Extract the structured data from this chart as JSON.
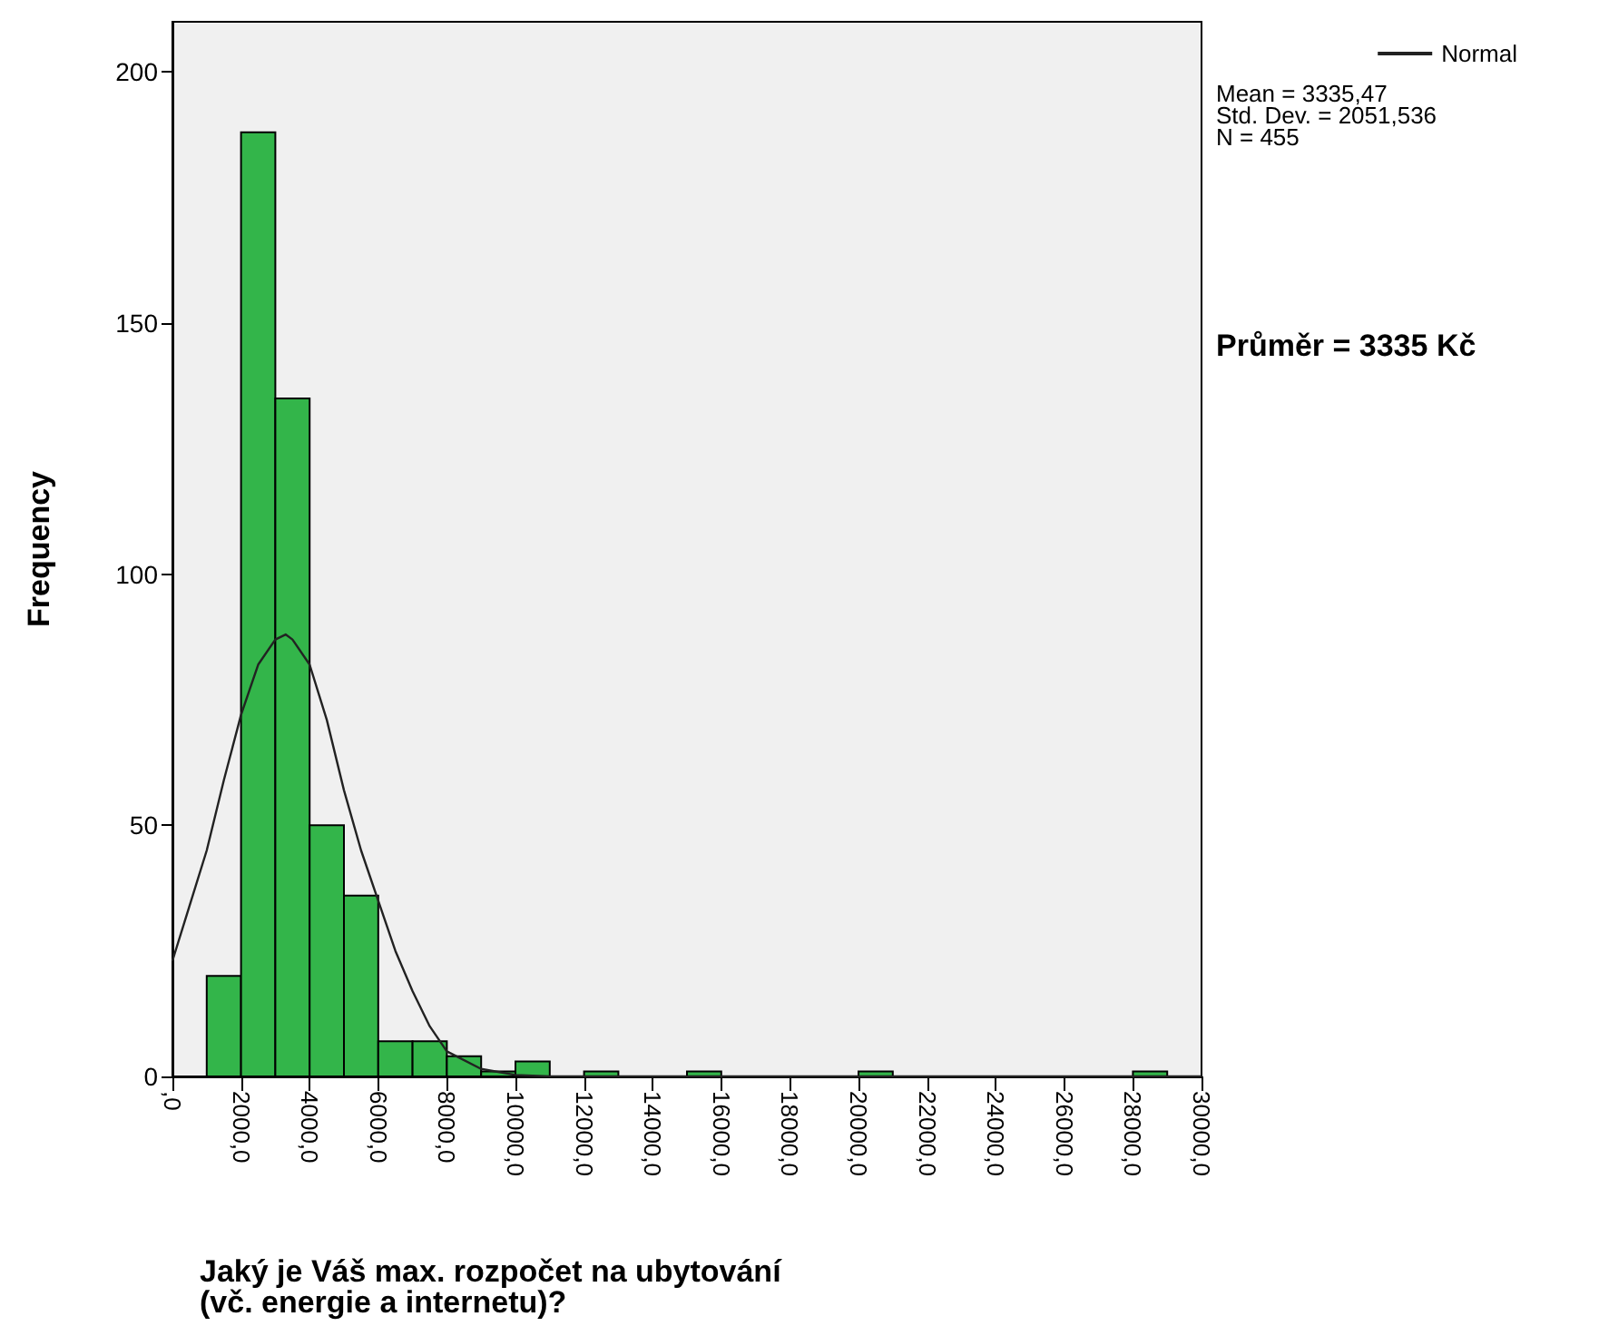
{
  "chart_data": {
    "type": "histogram",
    "xlabel": "Jaký je Váš max. rozpočet na ubytování (vč. energie a internetu)?",
    "ylabel": "Frequency",
    "bins": [
      1000,
      2000,
      3000,
      4000,
      5000,
      6000,
      7000,
      8000,
      9000,
      10000,
      11000,
      12000,
      13000,
      14000,
      15000,
      16000,
      17000,
      18000,
      19000,
      20000,
      21000,
      22000,
      23000,
      24000,
      25000,
      26000,
      27000,
      28000,
      29000
    ],
    "values": [
      20,
      188,
      135,
      50,
      36,
      7,
      7,
      4,
      1,
      3,
      0,
      1,
      0,
      0,
      1,
      0,
      0,
      0,
      0,
      1,
      0,
      0,
      0,
      0,
      0,
      0,
      0,
      1
    ],
    "color": "#33b54a",
    "series": [
      {
        "name": "Normal",
        "type": "line",
        "color": "#222222",
        "x": [
          0,
          500,
          1000,
          1500,
          2000,
          2500,
          3000,
          3300,
          3500,
          4000,
          4500,
          5000,
          5500,
          6000,
          6500,
          7000,
          7500,
          8000,
          9000,
          10000,
          11000,
          12000,
          30000
        ],
        "values": [
          23,
          34,
          45,
          59,
          72,
          82,
          87,
          88,
          87,
          82,
          71,
          57,
          45,
          35,
          25,
          17,
          10,
          5,
          1.5,
          0.3,
          0,
          0,
          0
        ]
      }
    ],
    "annotations": [
      "Mean = 3335,47",
      "Std. Dev. = 2051,536",
      "N = 455",
      "Průměr = 3335 Kč"
    ],
    "xlim": [
      0,
      30000
    ],
    "xticks": [
      {
        "value": 0,
        "label": ",0"
      },
      {
        "value": 2000,
        "label": "2000,0"
      },
      {
        "value": 4000,
        "label": "4000,0"
      },
      {
        "value": 6000,
        "label": "6000,0"
      },
      {
        "value": 8000,
        "label": "8000,0"
      },
      {
        "value": 10000,
        "label": "10000,0"
      },
      {
        "value": 12000,
        "label": "12000,0"
      },
      {
        "value": 14000,
        "label": "14000,0"
      },
      {
        "value": 16000,
        "label": "16000,0"
      },
      {
        "value": 18000,
        "label": "18000,0"
      },
      {
        "value": 20000,
        "label": "20000,0"
      },
      {
        "value": 22000,
        "label": "22000,0"
      },
      {
        "value": 24000,
        "label": "24000,0"
      },
      {
        "value": 26000,
        "label": "26000,0"
      },
      {
        "value": 28000,
        "label": "28000,0"
      },
      {
        "value": 30000,
        "label": "30000,0"
      }
    ],
    "ylim": [
      0,
      210
    ],
    "yticks": [
      0,
      50,
      100,
      150,
      200
    ],
    "grid": false,
    "legend": "top right",
    "marker": "none"
  }
}
